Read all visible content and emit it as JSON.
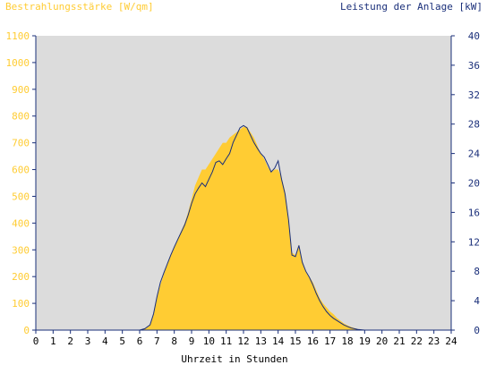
{
  "chart_data": {
    "type": "area",
    "title_left": "Bestrahlungsstärke [W/qm]",
    "title_right": "Leistung der Anlage [kW]",
    "xlabel": "Uhrzeit in Stunden",
    "x_ticks": [
      "0",
      "1",
      "2",
      "3",
      "4",
      "5",
      "6",
      "7",
      "8",
      "9",
      "10",
      "11",
      "12",
      "13",
      "14",
      "15",
      "16",
      "17",
      "18",
      "19",
      "20",
      "21",
      "22",
      "23",
      "24"
    ],
    "y_left_ticks": [
      "0",
      "100",
      "200",
      "300",
      "400",
      "500",
      "600",
      "700",
      "800",
      "900",
      "1000",
      "1100"
    ],
    "y_right_ticks": [
      "0",
      "4",
      "8",
      "12",
      "16",
      "20",
      "24",
      "28",
      "32",
      "36",
      "40"
    ],
    "xlim": [
      0,
      24
    ],
    "ylim_left": [
      0,
      1100
    ],
    "ylim_right": [
      0,
      40
    ],
    "grid": false,
    "colors": {
      "plot_background": "#dcdcdc",
      "irradiance_fill": "#ffcc33",
      "power_line": "#1a2f7a",
      "left_axis_text": "#ffcc33",
      "right_axis_text": "#1a2f7a",
      "axis": "#1a2f7a"
    },
    "series": [
      {
        "axis": "left",
        "style": "filled-area",
        "x": [
          6.0,
          6.3,
          6.6,
          6.8,
          7.0,
          7.2,
          7.4,
          7.6,
          7.8,
          8.0,
          8.2,
          8.4,
          8.6,
          8.8,
          9.0,
          9.2,
          9.4,
          9.6,
          9.8,
          10.0,
          10.2,
          10.4,
          10.6,
          10.8,
          11.0,
          11.2,
          11.4,
          11.6,
          11.8,
          12.0,
          12.2,
          12.4,
          12.6,
          12.8,
          13.0,
          13.2,
          13.4,
          13.6,
          13.8,
          14.0,
          14.2,
          14.4,
          14.6,
          14.8,
          15.0,
          15.2,
          15.4,
          15.6,
          15.8,
          16.0,
          16.2,
          16.4,
          16.6,
          16.8,
          17.0,
          17.2,
          17.4,
          17.6,
          17.8,
          18.0,
          18.2,
          18.4,
          18.6,
          18.8,
          19.0
        ],
        "values": [
          0,
          5,
          20,
          60,
          120,
          170,
          210,
          250,
          280,
          310,
          340,
          370,
          400,
          440,
          490,
          540,
          570,
          600,
          600,
          620,
          640,
          660,
          680,
          700,
          700,
          720,
          730,
          740,
          750,
          760,
          760,
          740,
          720,
          690,
          660,
          640,
          610,
          590,
          600,
          600,
          570,
          520,
          420,
          290,
          280,
          320,
          260,
          220,
          200,
          180,
          150,
          120,
          100,
          85,
          70,
          60,
          45,
          35,
          25,
          18,
          12,
          8,
          4,
          2,
          0
        ]
      },
      {
        "axis": "right",
        "style": "line",
        "x": [
          6.0,
          6.3,
          6.6,
          6.8,
          7.0,
          7.2,
          7.4,
          7.6,
          7.8,
          8.0,
          8.2,
          8.4,
          8.6,
          8.8,
          9.0,
          9.2,
          9.4,
          9.6,
          9.8,
          10.0,
          10.2,
          10.4,
          10.6,
          10.8,
          11.0,
          11.2,
          11.4,
          11.6,
          11.8,
          12.0,
          12.2,
          12.4,
          12.6,
          12.8,
          13.0,
          13.2,
          13.4,
          13.6,
          13.8,
          14.0,
          14.2,
          14.4,
          14.6,
          14.8,
          15.0,
          15.2,
          15.4,
          15.6,
          15.8,
          16.0,
          16.2,
          16.4,
          16.6,
          16.8,
          17.0,
          17.2,
          17.4,
          17.6,
          17.8,
          18.0,
          18.2,
          18.4,
          18.6,
          18.8,
          19.0
        ],
        "values": [
          0,
          0.2,
          0.7,
          2.2,
          4.5,
          6.5,
          7.8,
          9.0,
          10.2,
          11.3,
          12.3,
          13.3,
          14.3,
          15.6,
          17.2,
          18.5,
          19.3,
          20.0,
          19.5,
          20.5,
          21.5,
          22.8,
          23.0,
          22.5,
          23.3,
          24.0,
          25.5,
          26.5,
          27.5,
          27.8,
          27.5,
          26.5,
          25.5,
          24.7,
          24.0,
          23.5,
          22.5,
          21.5,
          22.0,
          23.0,
          20.5,
          18.5,
          15.0,
          10.2,
          10.0,
          11.5,
          9.2,
          8.0,
          7.2,
          6.2,
          5.0,
          4.0,
          3.2,
          2.5,
          2.0,
          1.6,
          1.3,
          1.0,
          0.7,
          0.5,
          0.3,
          0.2,
          0.1,
          0.05,
          0
        ]
      }
    ]
  }
}
